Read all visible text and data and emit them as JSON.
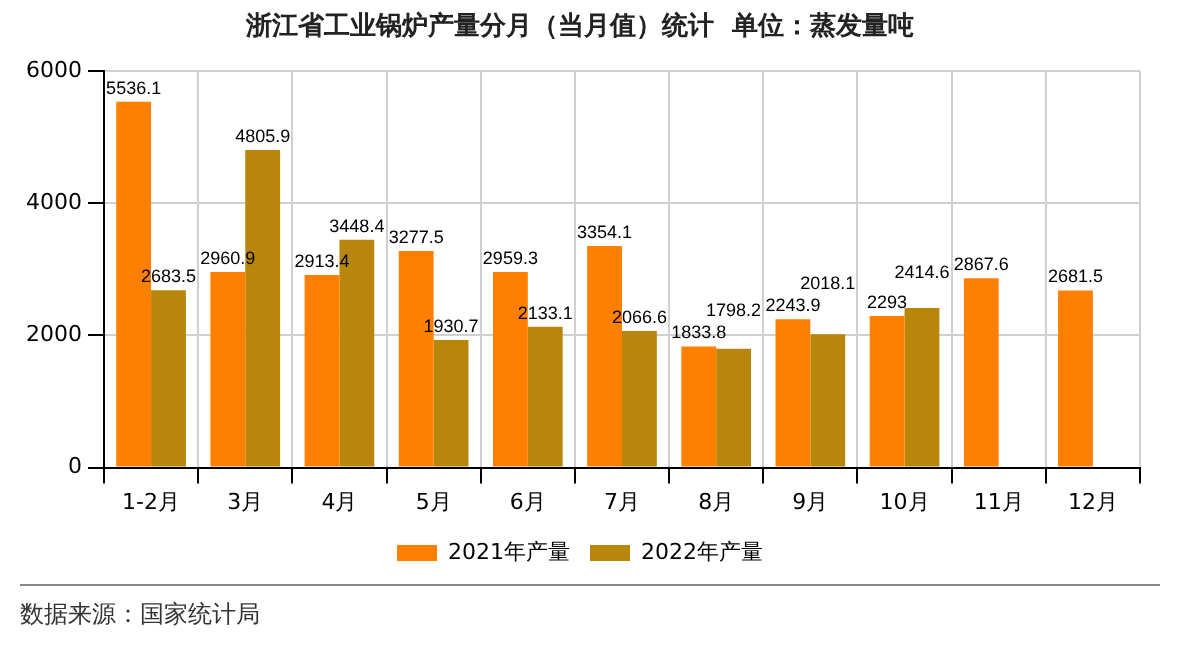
{
  "chart_data": {
    "type": "bar",
    "title": "浙江省工业锅炉产量分月（当月值）统计  单位：蒸发量吨",
    "categories": [
      "1-2月",
      "3月",
      "4月",
      "5月",
      "6月",
      "7月",
      "8月",
      "9月",
      "10月",
      "11月",
      "12月"
    ],
    "series": [
      {
        "name": "2021年产量",
        "color": "#ff8000",
        "values": [
          5536.1,
          2960.9,
          2913.4,
          3277.5,
          2959.3,
          3354.1,
          1833.8,
          2243.9,
          2293,
          2867.6,
          2681.5
        ]
      },
      {
        "name": "2022年产量",
        "color": "#b8860b",
        "values": [
          2683.5,
          4805.9,
          3448.4,
          1930.7,
          2133.1,
          2066.6,
          1798.2,
          2018.1,
          2414.6,
          null,
          null
        ]
      }
    ],
    "ylim": [
      0,
      6000
    ],
    "yticks": [
      0,
      2000,
      4000,
      6000
    ],
    "grid": true,
    "legend": "bottom",
    "data_labels": true,
    "annotations": [
      "数据来源：国家统计局"
    ]
  }
}
